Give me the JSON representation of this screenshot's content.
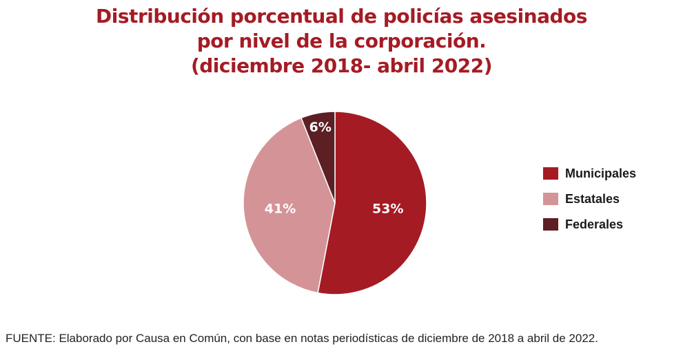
{
  "title": {
    "line1": "Distribución porcentual de policías asesinados",
    "line2": "por nivel de la corporación.",
    "line3": "(diciembre 2018- abril 2022)"
  },
  "source": "FUENTE: Elaborado por Causa en Común, con base en notas periodísticas de diciembre de 2018 a abril de 2022.",
  "chart_data": {
    "type": "pie",
    "categories": [
      "Municipales",
      "Estatales",
      "Federales"
    ],
    "values": [
      53,
      41,
      6
    ],
    "labels": [
      "53%",
      "41%",
      "6%"
    ],
    "colors": [
      "#a51b24",
      "#d49497",
      "#5c1f24"
    ],
    "legend": "right"
  }
}
